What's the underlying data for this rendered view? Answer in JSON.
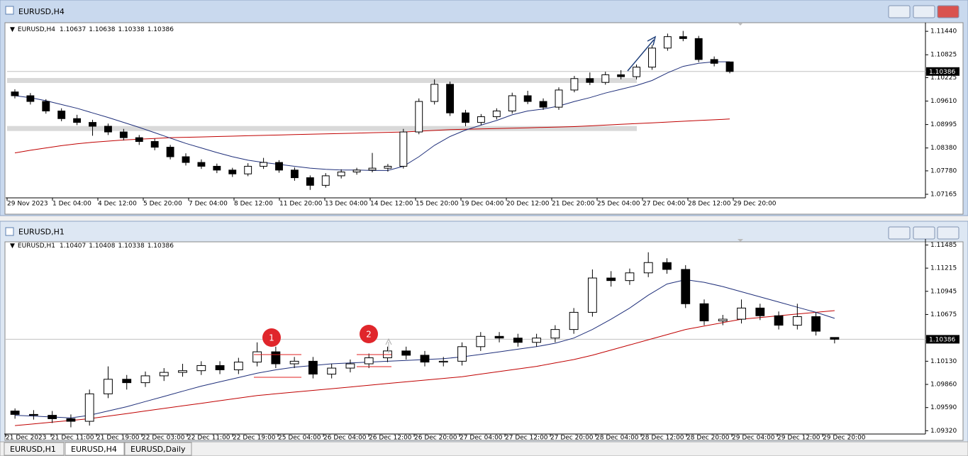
{
  "windows": [
    {
      "title": "EURUSD,H4",
      "ohlc": [
        1.10637,
        1.10638,
        1.10338,
        1.10386
      ],
      "ylim": [
        1.0709,
        1.1161
      ],
      "yticks": [
        {
          "value": 1.1144,
          "label": "1.11440"
        },
        1.10825,
        1.10225,
        {
          "value": 1.0961,
          "label": "1.09610"
        },
        1.08995,
        {
          "value": 1.0838,
          "label": "1.08380"
        },
        {
          "value": 1.0778,
          "label": "1.07780"
        },
        1.07165
      ],
      "xlabels": [
        "29 Nov 2023",
        "1 Dec 04:00",
        "4 Dec 12:00",
        "5 Dec 20:00",
        "7 Dec 04:00",
        "8 Dec 12:00",
        "11 Dec 20:00",
        "13 Dec 04:00",
        "14 Dec 12:00",
        "15 Dec 20:00",
        "19 Dec 04:00",
        "20 Dec 12:00",
        "21 Dec 20:00",
        "25 Dec 04:00",
        "27 Dec 04:00",
        "28 Dec 12:00",
        "29 Dec 20:00"
      ],
      "zones": [
        1.1016,
        1.089
      ],
      "candles": [
        [
          1.0985,
          1.0992,
          1.0968,
          1.0975
        ],
        [
          1.0975,
          1.0982,
          1.0952,
          1.096
        ],
        [
          1.096,
          1.0966,
          1.0928,
          1.0935
        ],
        [
          1.0935,
          1.0942,
          1.0908,
          1.0915
        ],
        [
          1.0915,
          1.0925,
          1.0898,
          1.0905
        ],
        [
          1.0905,
          1.0912,
          1.087,
          1.0895
        ],
        [
          1.0895,
          1.0902,
          1.0872,
          1.088
        ],
        [
          1.088,
          1.0888,
          1.0858,
          1.0865
        ],
        [
          1.0865,
          1.0872,
          1.0846,
          1.0855
        ],
        [
          1.0855,
          1.0862,
          1.0832,
          1.084
        ],
        [
          1.084,
          1.0846,
          1.0808,
          1.0815
        ],
        [
          1.0815,
          1.0824,
          1.0792,
          1.08
        ],
        [
          1.08,
          1.0808,
          1.0783,
          1.079
        ],
        [
          1.079,
          1.0797,
          1.0772,
          1.078
        ],
        [
          1.078,
          1.0786,
          1.0762,
          1.077
        ],
        [
          1.077,
          1.0798,
          1.0764,
          1.079
        ],
        [
          1.079,
          1.0812,
          1.0783,
          1.08
        ],
        [
          1.08,
          1.0806,
          1.0773,
          1.078
        ],
        [
          1.078,
          1.0787,
          1.0752,
          1.076
        ],
        [
          1.076,
          1.0766,
          1.0728,
          1.074
        ],
        [
          1.074,
          1.0772,
          1.0734,
          1.0765
        ],
        [
          1.0765,
          1.0782,
          1.0758,
          1.0775
        ],
        [
          1.0775,
          1.0786,
          1.0768,
          1.078
        ],
        [
          1.078,
          1.0825,
          1.0774,
          1.0785
        ],
        [
          1.0785,
          1.0796,
          1.0776,
          1.079
        ],
        [
          1.079,
          1.0888,
          1.0784,
          1.088
        ],
        [
          1.088,
          1.0968,
          1.0874,
          1.096
        ],
        [
          1.096,
          1.1018,
          1.0952,
          1.1005
        ],
        [
          1.1005,
          1.1012,
          1.0922,
          1.093
        ],
        [
          1.093,
          1.0938,
          1.0895,
          1.0905
        ],
        [
          1.0905,
          1.0927,
          1.0898,
          1.092
        ],
        [
          1.092,
          1.0942,
          1.0913,
          1.0935
        ],
        [
          1.0935,
          1.0983,
          1.0928,
          1.0975
        ],
        [
          1.0975,
          1.0988,
          1.0953,
          1.096
        ],
        [
          1.096,
          1.0968,
          1.0938,
          1.0945
        ],
        [
          1.0945,
          1.0997,
          1.0938,
          1.099
        ],
        [
          1.099,
          1.1027,
          1.0984,
          1.102
        ],
        [
          1.102,
          1.1036,
          1.1003,
          1.101
        ],
        [
          1.101,
          1.1038,
          1.1004,
          1.103
        ],
        [
          1.103,
          1.1042,
          1.1018,
          1.1025
        ],
        [
          1.1025,
          1.1057,
          1.1018,
          1.105
        ],
        [
          1.105,
          1.1108,
          1.1043,
          1.11
        ],
        [
          1.11,
          1.1138,
          1.1093,
          1.113
        ],
        [
          1.113,
          1.1145,
          1.1118,
          1.1125
        ],
        [
          1.1125,
          1.1132,
          1.1063,
          1.107
        ],
        [
          1.107,
          1.1078,
          1.1052,
          1.106
        ],
        [
          1.10637,
          1.10638,
          1.10338,
          1.10386
        ]
      ],
      "ma_fast": [
        1.0975,
        1.097,
        1.0962,
        1.0952,
        1.0942,
        1.093,
        1.0918,
        1.0905,
        1.0892,
        1.0878,
        1.0864,
        1.085,
        1.0838,
        1.0826,
        1.0815,
        1.0806,
        1.08,
        1.0795,
        1.079,
        1.0785,
        1.0782,
        1.078,
        1.078,
        1.0779,
        1.0779,
        1.079,
        1.0815,
        1.0845,
        1.0868,
        1.0885,
        1.0898,
        1.091,
        1.0925,
        1.0935,
        1.094,
        1.0948,
        1.096,
        1.097,
        1.0982,
        1.0992,
        1.1002,
        1.1015,
        1.1035,
        1.1052,
        1.106,
        1.1064,
        1.1064
      ],
      "ma_slow": [
        1.0825,
        1.0832,
        1.0838,
        1.0844,
        1.0849,
        1.0853,
        1.0856,
        1.0859,
        1.0861,
        1.0863,
        1.0865,
        1.0866,
        1.0867,
        1.0868,
        1.0869,
        1.087,
        1.0871,
        1.0872,
        1.0873,
        1.0874,
        1.0875,
        1.0876,
        1.0877,
        1.0878,
        1.0879,
        1.088,
        1.0882,
        1.0884,
        1.0886,
        1.0887,
        1.0888,
        1.0889,
        1.089,
        1.0891,
        1.0892,
        1.0893,
        1.0894,
        1.0896,
        1.0898,
        1.09,
        1.0902,
        1.0904,
        1.0906,
        1.0908,
        1.091,
        1.0912,
        1.0914
      ]
    },
    {
      "title": "EURUSD,H1",
      "ohlc": [
        1.10407,
        1.10408,
        1.10338,
        1.10386
      ],
      "ylim": [
        1.0929,
        1.1153
      ],
      "yticks": [
        1.11485,
        1.11215,
        1.10945,
        1.10675,
        {
          "value": 1.1013,
          "label": "1.10130"
        },
        {
          "value": 1.0986,
          "label": "1.09860"
        },
        {
          "value": 1.0959,
          "label": "1.09590"
        },
        {
          "value": 1.0932,
          "label": "1.09320"
        }
      ],
      "xlabels": [
        "21 Dec 2023",
        "21 Dec 11:00",
        "21 Dec 19:00",
        "22 Dec 03:00",
        "22 Dec 11:00",
        "22 Dec 19:00",
        "25 Dec 04:00",
        "26 Dec 04:00",
        "26 Dec 12:00",
        "26 Dec 20:00",
        "27 Dec 04:00",
        "27 Dec 12:00",
        "27 Dec 20:00",
        "28 Dec 04:00",
        "28 Dec 12:00",
        "28 Dec 20:00",
        "29 Dec 04:00",
        "29 Dec 12:00",
        "29 Dec 20:00"
      ],
      "markers": [
        "1",
        "2"
      ],
      "candles": [
        [
          1.0955,
          1.0958,
          1.0946,
          1.0951
        ],
        [
          1.0951,
          1.0956,
          1.0945,
          1.095
        ],
        [
          1.095,
          1.0955,
          1.0941,
          1.0946
        ],
        [
          1.0946,
          1.0951,
          1.0936,
          1.0943
        ],
        [
          1.0943,
          1.098,
          1.0938,
          1.0975
        ],
        [
          1.0975,
          1.1007,
          1.097,
          1.0992
        ],
        [
          1.0992,
          1.0997,
          1.098,
          1.0988
        ],
        [
          1.0988,
          1.1001,
          1.0983,
          1.0996
        ],
        [
          1.0996,
          1.1005,
          1.099,
          1.1
        ],
        [
          1.1,
          1.101,
          1.0995,
          1.1002
        ],
        [
          1.1002,
          1.1013,
          1.0997,
          1.1008
        ],
        [
          1.1008,
          1.1013,
          1.0998,
          1.1003
        ],
        [
          1.1003,
          1.1017,
          1.0998,
          1.1012
        ],
        [
          1.1012,
          1.1035,
          1.1007,
          1.1024
        ],
        [
          1.1024,
          1.103,
          1.1005,
          1.101
        ],
        [
          1.101,
          1.1018,
          1.1005,
          1.1013
        ],
        [
          1.1013,
          1.1018,
          1.0993,
          1.0998
        ],
        [
          1.0998,
          1.101,
          1.0993,
          1.1005
        ],
        [
          1.1005,
          1.1015,
          1.1,
          1.101
        ],
        [
          1.101,
          1.1022,
          1.1005,
          1.1017
        ],
        [
          1.1017,
          1.103,
          1.1012,
          1.1025
        ],
        [
          1.1025,
          1.103,
          1.1015,
          1.102
        ],
        [
          1.102,
          1.1025,
          1.1007,
          1.1012
        ],
        [
          1.1012,
          1.1018,
          1.1007,
          1.1013
        ],
        [
          1.1013,
          1.1035,
          1.1008,
          1.103
        ],
        [
          1.103,
          1.1047,
          1.1025,
          1.1042
        ],
        [
          1.1042,
          1.1047,
          1.1035,
          1.104
        ],
        [
          1.104,
          1.1045,
          1.103,
          1.1035
        ],
        [
          1.1035,
          1.1045,
          1.103,
          1.104
        ],
        [
          1.104,
          1.1055,
          1.1035,
          1.105
        ],
        [
          1.105,
          1.1075,
          1.1045,
          1.107
        ],
        [
          1.107,
          1.112,
          1.1065,
          1.111
        ],
        [
          1.111,
          1.1118,
          1.11,
          1.1107
        ],
        [
          1.1107,
          1.1121,
          1.1102,
          1.1116
        ],
        [
          1.1116,
          1.114,
          1.1111,
          1.1128
        ],
        [
          1.1128,
          1.1133,
          1.1115,
          1.112
        ],
        [
          1.112,
          1.1125,
          1.1075,
          1.108
        ],
        [
          1.108,
          1.1085,
          1.1055,
          1.106
        ],
        [
          1.106,
          1.1067,
          1.1055,
          1.1062
        ],
        [
          1.1062,
          1.1085,
          1.1057,
          1.1075
        ],
        [
          1.1075,
          1.108,
          1.1061,
          1.1066
        ],
        [
          1.1066,
          1.1071,
          1.105,
          1.1055
        ],
        [
          1.1055,
          1.108,
          1.105,
          1.1065
        ],
        [
          1.1065,
          1.107,
          1.1043,
          1.1048
        ],
        [
          1.10407,
          1.10408,
          1.10338,
          1.10386
        ]
      ],
      "ma_fast": [
        1.095,
        1.0949,
        1.0948,
        1.0947,
        1.095,
        1.0955,
        1.096,
        1.0966,
        1.0972,
        1.0978,
        1.0984,
        1.0989,
        1.0994,
        1.0999,
        1.1003,
        1.1006,
        1.1008,
        1.101,
        1.1011,
        1.1012,
        1.1013,
        1.1014,
        1.1015,
        1.1016,
        1.1018,
        1.1021,
        1.1024,
        1.1027,
        1.103,
        1.1034,
        1.104,
        1.105,
        1.1062,
        1.1075,
        1.109,
        1.1103,
        1.1108,
        1.1105,
        1.11,
        1.1094,
        1.1088,
        1.1082,
        1.1076,
        1.107,
        1.1063
      ],
      "ma_slow": [
        1.0938,
        1.094,
        1.0942,
        1.0944,
        1.0946,
        1.0949,
        1.0952,
        1.0955,
        1.0958,
        1.0961,
        1.0964,
        1.0967,
        1.097,
        1.0973,
        1.0975,
        1.0977,
        1.0979,
        1.0981,
        1.0983,
        1.0985,
        1.0987,
        1.0989,
        1.0991,
        1.0993,
        1.0995,
        1.0998,
        1.1001,
        1.1004,
        1.1007,
        1.1011,
        1.1015,
        1.102,
        1.1026,
        1.1032,
        1.1038,
        1.1044,
        1.105,
        1.1054,
        1.1058,
        1.1062,
        1.1064,
        1.1066,
        1.1068,
        1.107,
        1.1072
      ]
    }
  ],
  "tabs": [
    "EURUSD,H1",
    "EURUSD,H4",
    "EURUSD,Daily"
  ]
}
